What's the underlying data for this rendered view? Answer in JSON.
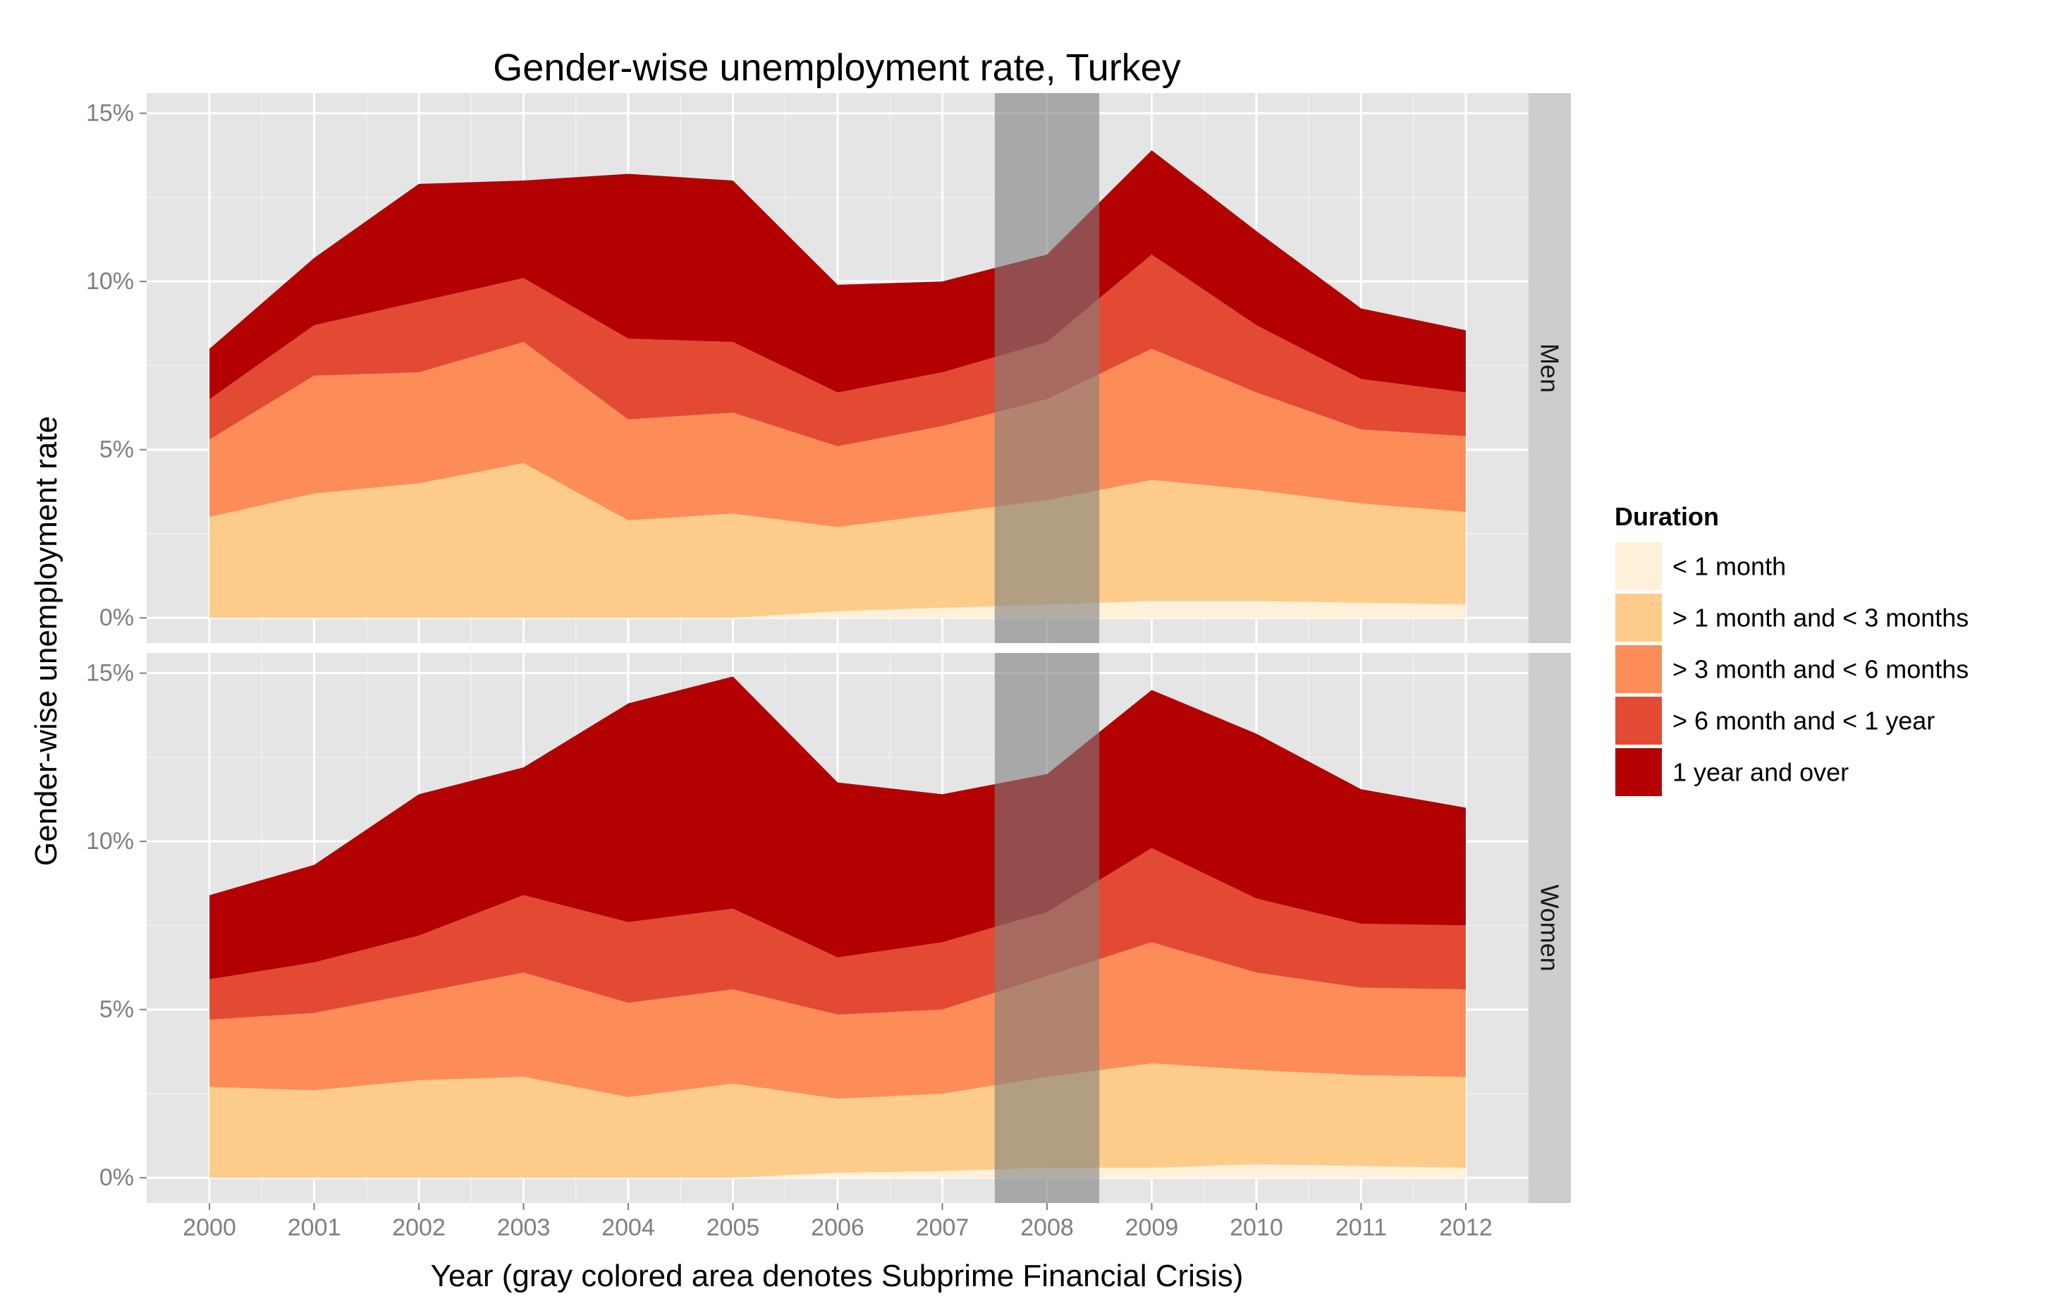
{
  "chart_data": {
    "type": "area",
    "title": "Gender-wise unemployment rate, Turkey",
    "xlabel": "Year (gray colored area denotes Subprime Financial Crisis)",
    "ylabel": "Gender-wise unemployment rate",
    "x": [
      2000,
      2001,
      2002,
      2003,
      2004,
      2005,
      2006,
      2007,
      2008,
      2009,
      2010,
      2011,
      2012
    ],
    "x_tick_labels": [
      "2000",
      "2001",
      "2002",
      "2003",
      "2004",
      "2005",
      "2006",
      "2007",
      "2008",
      "2009",
      "2010",
      "2011",
      "2012"
    ],
    "xlim": [
      1999.4,
      2012.6
    ],
    "ylim": [
      -0.0075,
      0.156
    ],
    "y_ticks": [
      0,
      0.05,
      0.1,
      0.15
    ],
    "y_tick_labels": [
      "0%",
      "5%",
      "10%",
      "15%"
    ],
    "stacked": true,
    "grid": true,
    "highlight_band": {
      "x_from": 2007.5,
      "x_to": 2008.5,
      "color": "#7f7f7f"
    },
    "legend": {
      "title": "Duration",
      "placement": "right",
      "entries": [
        {
          "label": "< 1 month",
          "color": "#FEF0D9"
        },
        {
          "label": "> 1 month and < 3 months",
          "color": "#FDCC8A"
        },
        {
          "label": "> 3 month and < 6 months",
          "color": "#FC8D59"
        },
        {
          "label": "> 6 month and < 1 year",
          "color": "#E34A33"
        },
        {
          "label": "1 year and over",
          "color": "#B30000"
        }
      ]
    },
    "panels": [
      {
        "label": "Men",
        "series": [
          {
            "name": "< 1 month",
            "color": "#FEF0D9",
            "values": [
              0.0,
              0.0,
              0.0,
              0.0,
              0.0,
              0.0,
              0.002,
              0.003,
              0.004,
              0.005,
              0.005,
              0.0045,
              0.004
            ]
          },
          {
            "name": "> 1 month and < 3 months",
            "color": "#FDCC8A",
            "values": [
              0.03,
              0.037,
              0.04,
              0.046,
              0.029,
              0.031,
              0.025,
              0.028,
              0.031,
              0.036,
              0.033,
              0.0295,
              0.0275
            ]
          },
          {
            "name": "> 3 month and < 6 months",
            "color": "#FC8D59",
            "values": [
              0.023,
              0.035,
              0.033,
              0.036,
              0.03,
              0.03,
              0.024,
              0.026,
              0.03,
              0.039,
              0.029,
              0.022,
              0.0225
            ]
          },
          {
            "name": "> 6 month and < 1 year",
            "color": "#E34A33",
            "values": [
              0.012,
              0.015,
              0.021,
              0.019,
              0.024,
              0.021,
              0.016,
              0.016,
              0.017,
              0.028,
              0.02,
              0.015,
              0.013
            ]
          },
          {
            "name": "1 year and over",
            "color": "#B30000",
            "values": [
              0.015,
              0.02,
              0.035,
              0.029,
              0.049,
              0.048,
              0.032,
              0.027,
              0.026,
              0.031,
              0.028,
              0.021,
              0.0185
            ]
          }
        ]
      },
      {
        "label": "Women",
        "series": [
          {
            "name": "< 1 month",
            "color": "#FEF0D9",
            "values": [
              0.0,
              0.0,
              0.0,
              0.0,
              0.0,
              0.0,
              0.0015,
              0.002,
              0.003,
              0.003,
              0.004,
              0.0035,
              0.003
            ]
          },
          {
            "name": "> 1 month and < 3 months",
            "color": "#FDCC8A",
            "values": [
              0.027,
              0.026,
              0.029,
              0.03,
              0.024,
              0.028,
              0.022,
              0.023,
              0.027,
              0.031,
              0.028,
              0.027,
              0.027
            ]
          },
          {
            "name": "> 3 month and < 6 months",
            "color": "#FC8D59",
            "values": [
              0.02,
              0.023,
              0.026,
              0.031,
              0.028,
              0.028,
              0.025,
              0.025,
              0.03,
              0.036,
              0.029,
              0.026,
              0.026
            ]
          },
          {
            "name": "> 6 month and < 1 year",
            "color": "#E34A33",
            "values": [
              0.012,
              0.015,
              0.017,
              0.023,
              0.024,
              0.024,
              0.017,
              0.02,
              0.019,
              0.028,
              0.022,
              0.019,
              0.019
            ]
          },
          {
            "name": "1 year and over",
            "color": "#B30000",
            "values": [
              0.025,
              0.029,
              0.042,
              0.038,
              0.065,
              0.069,
              0.052,
              0.044,
              0.041,
              0.047,
              0.049,
              0.04,
              0.035
            ]
          }
        ]
      }
    ]
  }
}
